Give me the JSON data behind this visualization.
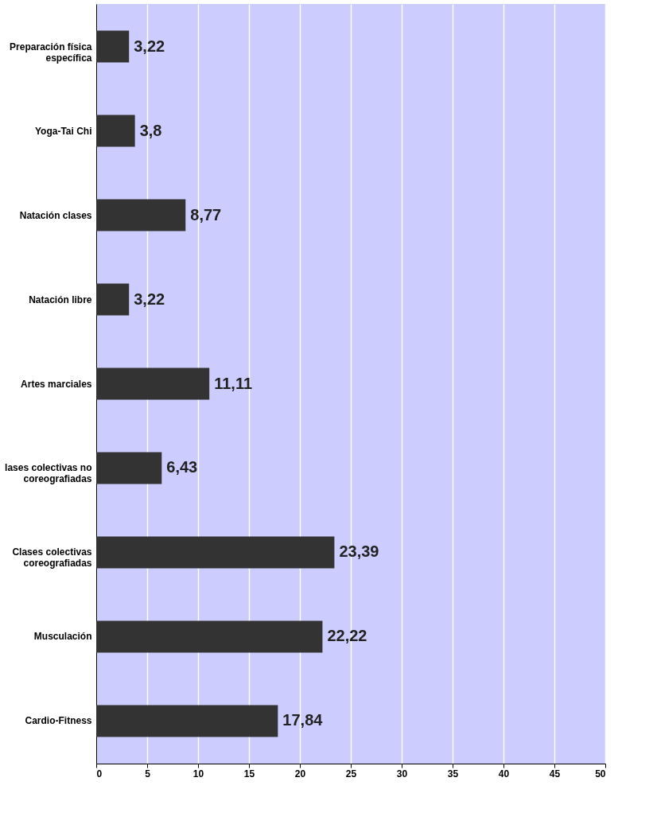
{
  "chart_data": {
    "type": "bar",
    "orientation": "horizontal",
    "categories": [
      "Preparación física\nespecífica",
      "Yoga-Tai Chi",
      "Natación clases",
      "Natación libre",
      "Artes marciales",
      "lases colectivas no\ncoreografiadas",
      "Clases colectivas\ncoreografiadas",
      "Musculación",
      "Cardio-Fitness"
    ],
    "values": [
      3.22,
      3.8,
      8.77,
      3.22,
      11.11,
      6.43,
      23.39,
      22.22,
      17.84
    ],
    "value_labels": [
      "3,22",
      "3,8",
      "8,77",
      "3,22",
      "11,11",
      "6,43",
      "23,39",
      "22,22",
      "17,84"
    ],
    "color": "#333333",
    "xlim": [
      0,
      50
    ],
    "xticks": [
      0,
      5,
      10,
      15,
      20,
      25,
      30,
      35,
      40,
      45,
      50
    ],
    "grid": "x"
  }
}
